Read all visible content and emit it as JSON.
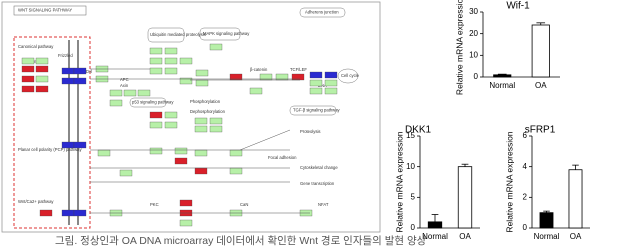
{
  "diagram": {
    "title": "WNT SIGNALING PATHWAY",
    "labels": [
      "Canonical pathway",
      "Planar cell polarity (PCP) pathway",
      "Wnt/Ca2+ pathway",
      "Adherens junction",
      "MAPK signaling pathway",
      "Ubiquitin mediated proteolysis",
      "TGF-β signaling pathway",
      "Cell cycle",
      "DNA",
      "p53 signaling pathway",
      "Phosphorylation",
      "Dephosphorylation",
      "Focal adhesion",
      "Cytoskeletal change",
      "Gene transcription",
      "Proteolysis",
      "Wnt",
      "Frizzled",
      "Dvl",
      "APC",
      "Axin",
      "β-catenin",
      "TCF/LEF",
      "PKC",
      "CaN",
      "NFAT"
    ]
  },
  "caption": "그림. 정상인과 OA DNA microarray 데이터에서 확인한 Wnt 경로 인자들의 발현 양상",
  "chart_data": [
    {
      "type": "bar",
      "title": "Wif-1",
      "y_label": "Relative mRNA expression",
      "categories": [
        "Normal",
        "OA"
      ],
      "values": [
        1,
        24
      ],
      "errors": [
        0.3,
        1
      ],
      "colors": [
        "#000000",
        "#ffffff"
      ],
      "ylim": [
        0,
        30
      ],
      "yticks": [
        0,
        10,
        20,
        30
      ]
    },
    {
      "type": "bar",
      "title": "DKK1",
      "y_label": "Relative mRNA expression",
      "categories": [
        "Normal",
        "OA"
      ],
      "values": [
        1,
        10
      ],
      "errors": [
        1.2,
        0.4
      ],
      "colors": [
        "#000000",
        "#ffffff"
      ],
      "ylim": [
        0,
        15
      ],
      "yticks": [
        0,
        5,
        10,
        15
      ]
    },
    {
      "type": "bar",
      "title": "sFRP1",
      "y_label": "Relative mRNA expression",
      "categories": [
        "Normal",
        "OA"
      ],
      "values": [
        1,
        3.8
      ],
      "errors": [
        0.1,
        0.3
      ],
      "colors": [
        "#000000",
        "#ffffff"
      ],
      "ylim": [
        0,
        6
      ],
      "yticks": [
        0,
        2,
        4,
        6
      ]
    }
  ]
}
